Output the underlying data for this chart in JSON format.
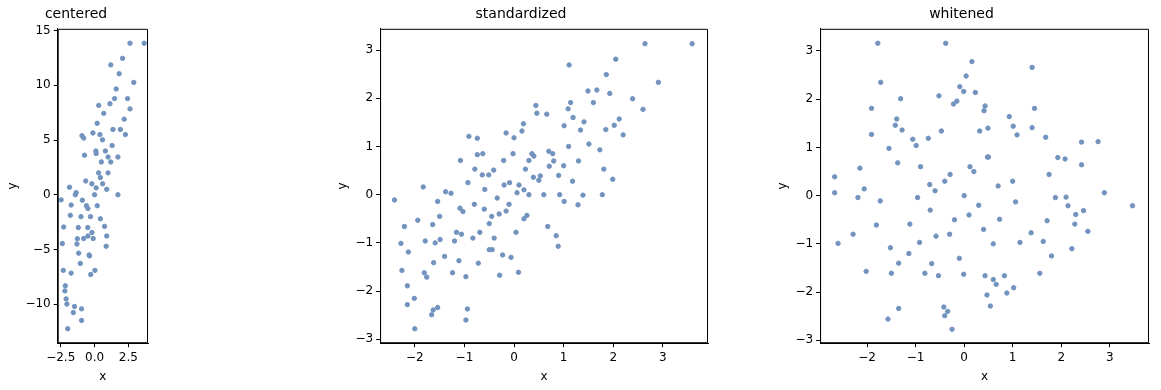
{
  "chart_data": [
    {
      "type": "scatter",
      "title": "centered",
      "xlabel": "x",
      "ylabel": "y",
      "color": "#7393bf",
      "marker": "circle",
      "grid": false,
      "xlim": [
        -2.72,
        3.95
      ],
      "ylim": [
        -13.57,
        15.17
      ],
      "xticks": [
        {
          "value": -2.5,
          "label": "−2.5"
        },
        {
          "value": 0,
          "label": "0.0"
        },
        {
          "value": 2.5,
          "label": "2.5"
        }
      ],
      "yticks": [
        {
          "value": -10,
          "label": "−10"
        },
        {
          "value": -5,
          "label": "−5"
        },
        0,
        5,
        10,
        15
      ],
      "x": [
        -2.47,
        -2.28,
        -2.38,
        -2.31,
        -2.16,
        -2.1,
        -2.04,
        -1.98,
        -2.19,
        -1.85,
        -1.79,
        -1.73,
        -1.57,
        -1.48,
        -1.73,
        -1.42,
        -1.36,
        -1.27,
        -1.17,
        -1.05,
        -0.96,
        -0.96,
        -0.93,
        -0.8,
        -0.74,
        -0.65,
        -0.49,
        -0.49,
        -0.37,
        -0.28,
        -0.19,
        -0.12,
        0.03,
        0.12,
        0.12,
        0.19,
        0.31,
        0.43,
        0.43,
        0.59,
        0.68,
        0.74,
        0.86,
        0.9,
        1.0,
        1.14,
        1.2,
        1.36,
        1.48,
        1.6,
        1.73,
        1.73,
        1.82,
        1.91,
        2.07,
        2.19,
        2.28,
        2.44,
        2.62,
        2.62,
        2.9,
        3.67,
        0,
        0.3,
        -0.3,
        0.5,
        -0.5,
        0.2,
        -0.2,
        0.8,
        -0.8,
        0.6,
        -0.6,
        1,
        -1,
        0.1,
        -0.1,
        1.2,
        -1.2,
        0.4,
        -0.4,
        0.9,
        -0.9,
        1.3,
        -1.3
      ],
      "values": [
        -0.47,
        -2.95,
        -4.46,
        -6.91,
        -8.32,
        -9.52,
        -9.99,
        -12.25,
        -8.79,
        0.69,
        -1.88,
        -0.94,
        -10.77,
        -10.21,
        -7.16,
        0,
        0.19,
        -4.02,
        -5.34,
        -6.28,
        -11.49,
        -10.43,
        5.4,
        5.18,
        3.61,
        1.26,
        -1.26,
        -3.77,
        -5.59,
        -7.29,
        -3.45,
        5.65,
        -6.91,
        3.77,
        0.63,
        6.53,
        8.17,
        1.57,
        -2.2,
        5.02,
        7.44,
        -2.89,
        -4.71,
        -3.77,
        3.45,
        8.32,
        11.87,
        5.97,
        8.79,
        9.67,
        0,
        3.45,
        11.06,
        5.97,
        12.47,
        6.91,
        5.5,
        8.79,
        7.85,
        13.85,
        10.27,
        13.85,
        0,
        2,
        -2,
        3,
        -3,
        -1,
        1,
        4,
        -4,
        1,
        -1,
        2,
        -2,
        4,
        -4,
        3,
        -3,
        5.5,
        -5.5,
        0.5,
        -0.5,
        4.5,
        -4.5
      ]
    },
    {
      "type": "scatter",
      "title": "standardized",
      "xlabel": "x",
      "ylabel": "y",
      "color": "#7393bf",
      "marker": "circle",
      "grid": false,
      "xlim": [
        -2.7,
        3.91
      ],
      "ylim": [
        -3.08,
        3.44
      ],
      "xticks": [
        {
          "value": -2,
          "label": "−2"
        },
        {
          "value": -1,
          "label": "−1"
        },
        0,
        1,
        2,
        3
      ],
      "yticks": [
        {
          "value": -3,
          "label": "−3"
        },
        {
          "value": -2,
          "label": "−2"
        },
        {
          "value": -1,
          "label": "−1"
        },
        0,
        1,
        2,
        3
      ],
      "x": [
        -2.41,
        -2.0,
        -2.28,
        -2.21,
        -2.26,
        -2.13,
        -2.15,
        -2.15,
        -2.01,
        -1.94,
        -1.83,
        -1.79,
        -1.81,
        -1.76,
        -1.66,
        -1.63,
        -1.54,
        -1.64,
        -1.59,
        -1.54,
        -1.5,
        -1.49,
        -1.62,
        -1.38,
        -1.27,
        -1.4,
        -1.2,
        -1.24,
        -1.16,
        -1.11,
        -1.08,
        -1.09,
        -1.03,
        -1.06,
        -0.97,
        -0.94,
        -0.97,
        -0.91,
        -0.93,
        -0.83,
        -0.74,
        -0.74,
        -0.79,
        -0.72,
        -0.69,
        -0.63,
        -0.64,
        -0.59,
        -0.51,
        -0.5,
        -0.44,
        -0.41,
        -0.45,
        -0.34,
        -0.29,
        -0.23,
        -0.21,
        -0.16,
        -0.16,
        -0.09,
        -0.06,
        -0.02,
        0.0,
        0.04,
        0.06,
        0.09,
        0.16,
        0.19,
        0.23,
        0.26,
        0.3,
        0.36,
        0.39,
        0.44,
        0.46,
        0.53,
        0.66,
        0.68,
        0.71,
        0.78,
        0.85,
        0.89,
        0.92,
        1.01,
        1.01,
        1.09,
        1.11,
        1.14,
        1.19,
        1.18,
        1.29,
        1.34,
        1.39,
        1.41,
        1.51,
        1.49,
        1.6,
        1.67,
        1.73,
        1.78,
        1.81,
        1.85,
        1.86,
        1.93,
        1.99,
        2.02,
        2.05,
        2.12,
        2.2,
        2.39,
        2.6,
        2.64,
        2.91,
        3.59,
        0.3,
        0.5,
        -0.3,
        0.2,
        -0.5,
        0.8,
        1.0,
        1.1,
        -0.2,
        0.6,
        0.7,
        -0.6,
        0.1,
        -0.1,
        0.4,
        0.9,
        1.3,
        -0.8,
        -0.4,
        0.2
      ],
      "values": [
        -0.11,
        -2.78,
        -1.01,
        -0.66,
        -1.57,
        -1.19,
        -1.89,
        -2.28,
        -2.15,
        -0.53,
        0.16,
        -0.96,
        -1.62,
        -1.71,
        -2.49,
        -2.39,
        -2.34,
        -0.62,
        -1.0,
        -0.14,
        -0.45,
        -0.93,
        -1.41,
        0.06,
        0.03,
        -1.28,
        -0.96,
        -1.62,
        -0.78,
        -1.37,
        0.71,
        -0.28,
        -0.35,
        -0.82,
        -1.7,
        -2.37,
        -2.6,
        1.21,
        0.25,
        -0.9,
        1.17,
        0.83,
        0.53,
        -1.42,
        -0.78,
        0.85,
        0.41,
        0.11,
        0.41,
        -1.14,
        -1.14,
        0.51,
        -0.45,
        -0.07,
        -1.67,
        -1.25,
        0.71,
        1.28,
        -0.34,
        0.25,
        -1.3,
        0.85,
        1.18,
        -0.78,
        0.04,
        -1.61,
        1.32,
        1.47,
        0.53,
        -0.43,
        0.71,
        0.85,
        0.36,
        1.85,
        1.69,
        0.39,
        1.67,
        -0.66,
        0.59,
        0.85,
        -0.85,
        -1.07,
        0.0,
        1.43,
        -0.14,
        1.78,
        2.69,
        1.91,
        1.6,
        0.28,
        -0.21,
        1.34,
        -0.01,
        1.51,
        1.05,
        2.15,
        1.91,
        2.17,
        0.93,
        0.0,
        0.53,
        1.35,
        2.49,
        2.1,
        0.32,
        1.44,
        2.81,
        1.57,
        1.24,
        1.99,
        1.77,
        3.13,
        2.33,
        3.13,
        0.0,
        0.3,
        -0.4,
        -0.5,
        -0.6,
        0.7,
        0.6,
        1.0,
        0.2,
        0.0,
        0.9,
        -0.3,
        0.2,
        -0.2,
        0.8,
        0.4,
        0.7,
        -0.2,
        -0.9,
        0.1
      ]
    },
    {
      "type": "scatter",
      "title": "whitened",
      "xlabel": "x",
      "ylabel": "y",
      "color": "#7393bf",
      "marker": "circle",
      "grid": false,
      "xlim": [
        -2.97,
        3.81
      ],
      "ylim": [
        -3.06,
        3.46
      ],
      "xticks": [
        {
          "value": -2,
          "label": "−2"
        },
        {
          "value": -1,
          "label": "−1"
        },
        0,
        1,
        2,
        3
      ],
      "yticks": [
        {
          "value": -3,
          "label": "−3"
        },
        {
          "value": -2,
          "label": "−2"
        },
        {
          "value": -1,
          "label": "−1"
        },
        0,
        1,
        2,
        3
      ],
      "x": [
        -2.67,
        -2.67,
        -2.6,
        -2.29,
        -2.19,
        -2.15,
        -2.06,
        -2.02,
        -1.91,
        -1.91,
        -1.78,
        -1.72,
        -1.73,
        -1.81,
        -1.55,
        -1.57,
        -1.52,
        -1.5,
        -1.42,
        -1.39,
        -1.35,
        -1.37,
        -1.31,
        -1.28,
        -1.35,
        -1.14,
        -1.12,
        -1.06,
        -0.99,
        -0.96,
        -0.92,
        -0.81,
        -0.74,
        -0.71,
        -0.67,
        -0.58,
        -0.52,
        -0.47,
        -0.53,
        -0.42,
        -0.4,
        -0.38,
        -0.34,
        -0.29,
        -0.25,
        -0.22,
        -0.15,
        -0.09,
        -0.01,
        -0.01,
        0.04,
        0.16,
        0.12,
        0.23,
        0.32,
        0.41,
        0.43,
        0.43,
        0.49,
        0.48,
        0.47,
        0.54,
        0.6,
        0.66,
        0.73,
        0.83,
        0.88,
        0.93,
        1.01,
        1.02,
        1.06,
        1.09,
        1.15,
        1.4,
        1.45,
        1.4,
        1.38,
        1.56,
        1.63,
        1.68,
        1.71,
        1.8,
        1.75,
        1.88,
        1.93,
        2.08,
        2.1,
        2.14,
        2.22,
        2.28,
        2.3,
        2.42,
        2.42,
        2.46,
        2.55,
        2.76,
        2.89,
        3.47,
        0.0,
        0.3,
        -0.4,
        0.5,
        -0.2,
        0.2,
        -0.6,
        0.4,
        -0.1,
        0.7,
        -0.9,
        1.0,
        0.1,
        -0.3,
        0.6,
        -0.7
      ],
      "values": [
        0.39,
        0.06,
        -0.99,
        -0.8,
        -0.04,
        0.57,
        0.14,
        -1.57,
        1.81,
        1.27,
        3.16,
        2.35,
        -0.11,
        -0.61,
        0.98,
        -2.56,
        -1.08,
        -1.61,
        1.46,
        1.59,
        -2.34,
        0.68,
        2.01,
        1.36,
        -1.4,
        -1.2,
        -0.59,
        1.17,
        1.04,
        -0.04,
        -0.97,
        -1.61,
        1.19,
        0.23,
        -1.41,
        -0.84,
        2.07,
        1.34,
        -1.66,
        -2.31,
        -2.49,
        3.16,
        -2.4,
        0.44,
        -2.77,
        1.9,
        1.96,
        2.26,
        2.16,
        -1.63,
        2.48,
        2.78,
        0.6,
        2.14,
        1.34,
        1.76,
        1.86,
        -1.66,
        1.4,
        0.8,
        -2.06,
        -2.29,
        -1.74,
        -1.84,
        -0.49,
        -1.66,
        -2.02,
        1.64,
        1.44,
        -1.91,
        -0.13,
        1.26,
        -0.97,
        2.66,
        1.81,
        1.41,
        -0.77,
        -1.61,
        -0.95,
        1.21,
        -0.52,
        -1.25,
        0.44,
        -0.04,
        0.79,
        0.76,
        -0.03,
        -0.21,
        -1.1,
        -0.59,
        -0.39,
        1.11,
        0.64,
        -0.31,
        -0.74,
        1.12,
        0.06,
        -0.21,
        0.0,
        -0.2,
        0.3,
        0.8,
        -0.5,
        0.5,
        0.1,
        -0.7,
        -1.3,
        0.2,
        0.6,
        0.3,
        -0.4,
        -0.8,
        -1.0,
        -0.3
      ]
    }
  ]
}
